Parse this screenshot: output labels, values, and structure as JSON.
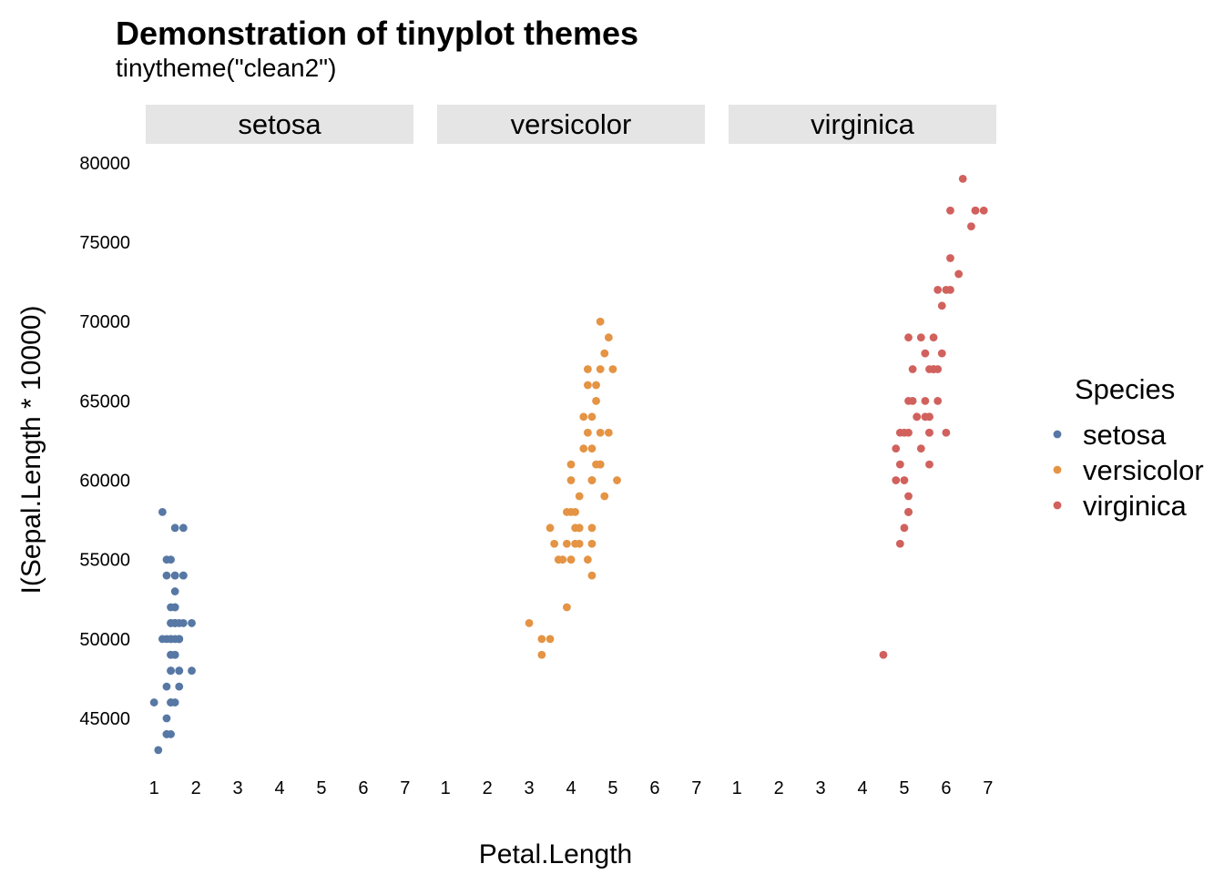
{
  "chart_data": {
    "type": "scatter",
    "title": "Demonstration of tinyplot themes",
    "subtitle": "tinytheme(\"clean2\")",
    "xlabel": "Petal.Length",
    "ylabel": "I(Sepal.Length * 10000)",
    "xlim": [
      0.8,
      7.2
    ],
    "ylim": [
      41500,
      80800
    ],
    "x_ticks": [
      1,
      2,
      3,
      4,
      5,
      6,
      7
    ],
    "y_ticks": [
      45000,
      50000,
      55000,
      60000,
      65000,
      70000,
      75000,
      80000
    ],
    "facets": [
      "setosa",
      "versicolor",
      "virginica"
    ],
    "legend_title": "Species",
    "legend_position": "right",
    "grid": false,
    "series": [
      {
        "name": "setosa",
        "color": "#5778a4",
        "points": [
          [
            1.4,
            51000
          ],
          [
            1.4,
            49000
          ],
          [
            1.3,
            47000
          ],
          [
            1.5,
            46000
          ],
          [
            1.4,
            50000
          ],
          [
            1.7,
            54000
          ],
          [
            1.4,
            46000
          ],
          [
            1.5,
            50000
          ],
          [
            1.4,
            44000
          ],
          [
            1.5,
            49000
          ],
          [
            1.5,
            54000
          ],
          [
            1.6,
            48000
          ],
          [
            1.4,
            48000
          ],
          [
            1.1,
            43000
          ],
          [
            1.2,
            58000
          ],
          [
            1.5,
            57000
          ],
          [
            1.3,
            54000
          ],
          [
            1.4,
            51000
          ],
          [
            1.7,
            57000
          ],
          [
            1.5,
            51000
          ],
          [
            1.7,
            54000
          ],
          [
            1.5,
            51000
          ],
          [
            1.0,
            46000
          ],
          [
            1.7,
            51000
          ],
          [
            1.9,
            48000
          ],
          [
            1.6,
            50000
          ],
          [
            1.6,
            50000
          ],
          [
            1.5,
            52000
          ],
          [
            1.4,
            52000
          ],
          [
            1.6,
            47000
          ],
          [
            1.6,
            48000
          ],
          [
            1.5,
            54000
          ],
          [
            1.5,
            52000
          ],
          [
            1.4,
            55000
          ],
          [
            1.5,
            49000
          ],
          [
            1.2,
            50000
          ],
          [
            1.3,
            55000
          ],
          [
            1.4,
            49000
          ],
          [
            1.3,
            44000
          ],
          [
            1.5,
            51000
          ],
          [
            1.3,
            50000
          ],
          [
            1.3,
            45000
          ],
          [
            1.3,
            44000
          ],
          [
            1.6,
            50000
          ],
          [
            1.9,
            51000
          ],
          [
            1.4,
            48000
          ],
          [
            1.6,
            51000
          ],
          [
            1.4,
            46000
          ],
          [
            1.5,
            53000
          ],
          [
            1.4,
            50000
          ]
        ]
      },
      {
        "name": "versicolor",
        "color": "#e49444",
        "points": [
          [
            4.7,
            70000
          ],
          [
            4.5,
            64000
          ],
          [
            4.9,
            69000
          ],
          [
            4.0,
            55000
          ],
          [
            4.6,
            65000
          ],
          [
            4.5,
            57000
          ],
          [
            4.7,
            63000
          ],
          [
            3.3,
            49000
          ],
          [
            4.6,
            66000
          ],
          [
            3.9,
            52000
          ],
          [
            3.5,
            50000
          ],
          [
            4.2,
            59000
          ],
          [
            4.0,
            60000
          ],
          [
            4.7,
            61000
          ],
          [
            3.6,
            56000
          ],
          [
            4.4,
            67000
          ],
          [
            4.5,
            56000
          ],
          [
            4.1,
            58000
          ],
          [
            4.5,
            62000
          ],
          [
            3.9,
            56000
          ],
          [
            4.8,
            59000
          ],
          [
            4.0,
            61000
          ],
          [
            4.9,
            63000
          ],
          [
            4.7,
            61000
          ],
          [
            4.3,
            64000
          ],
          [
            4.4,
            66000
          ],
          [
            4.8,
            68000
          ],
          [
            5.0,
            67000
          ],
          [
            4.5,
            60000
          ],
          [
            3.5,
            57000
          ],
          [
            3.8,
            55000
          ],
          [
            3.7,
            55000
          ],
          [
            3.9,
            58000
          ],
          [
            5.1,
            60000
          ],
          [
            4.5,
            54000
          ],
          [
            4.5,
            60000
          ],
          [
            4.7,
            67000
          ],
          [
            4.4,
            63000
          ],
          [
            4.1,
            56000
          ],
          [
            4.0,
            55000
          ],
          [
            4.4,
            55000
          ],
          [
            4.6,
            61000
          ],
          [
            4.0,
            58000
          ],
          [
            3.3,
            50000
          ],
          [
            4.2,
            56000
          ],
          [
            4.2,
            57000
          ],
          [
            4.2,
            57000
          ],
          [
            4.3,
            62000
          ],
          [
            3.0,
            51000
          ],
          [
            4.1,
            57000
          ]
        ]
      },
      {
        "name": "virginica",
        "color": "#d1615d",
        "points": [
          [
            6.0,
            63000
          ],
          [
            5.1,
            58000
          ],
          [
            5.9,
            71000
          ],
          [
            5.6,
            63000
          ],
          [
            5.8,
            65000
          ],
          [
            6.6,
            76000
          ],
          [
            4.5,
            49000
          ],
          [
            6.3,
            73000
          ],
          [
            5.8,
            67000
          ],
          [
            6.1,
            72000
          ],
          [
            5.1,
            65000
          ],
          [
            5.3,
            64000
          ],
          [
            5.5,
            68000
          ],
          [
            5.0,
            57000
          ],
          [
            5.1,
            58000
          ],
          [
            5.3,
            64000
          ],
          [
            5.5,
            65000
          ],
          [
            6.7,
            77000
          ],
          [
            6.9,
            77000
          ],
          [
            5.0,
            60000
          ],
          [
            5.7,
            69000
          ],
          [
            4.9,
            56000
          ],
          [
            6.7,
            77000
          ],
          [
            4.9,
            63000
          ],
          [
            5.7,
            67000
          ],
          [
            6.0,
            72000
          ],
          [
            4.8,
            62000
          ],
          [
            4.9,
            61000
          ],
          [
            5.6,
            64000
          ],
          [
            5.8,
            72000
          ],
          [
            6.1,
            74000
          ],
          [
            6.4,
            79000
          ],
          [
            5.6,
            64000
          ],
          [
            5.1,
            63000
          ],
          [
            5.6,
            61000
          ],
          [
            6.1,
            77000
          ],
          [
            5.6,
            63000
          ],
          [
            5.5,
            64000
          ],
          [
            4.8,
            60000
          ],
          [
            5.4,
            69000
          ],
          [
            5.6,
            67000
          ],
          [
            5.1,
            69000
          ],
          [
            5.1,
            58000
          ],
          [
            5.9,
            68000
          ],
          [
            5.7,
            67000
          ],
          [
            5.2,
            67000
          ],
          [
            5.0,
            63000
          ],
          [
            5.2,
            65000
          ],
          [
            5.4,
            62000
          ],
          [
            5.1,
            59000
          ]
        ]
      }
    ]
  }
}
